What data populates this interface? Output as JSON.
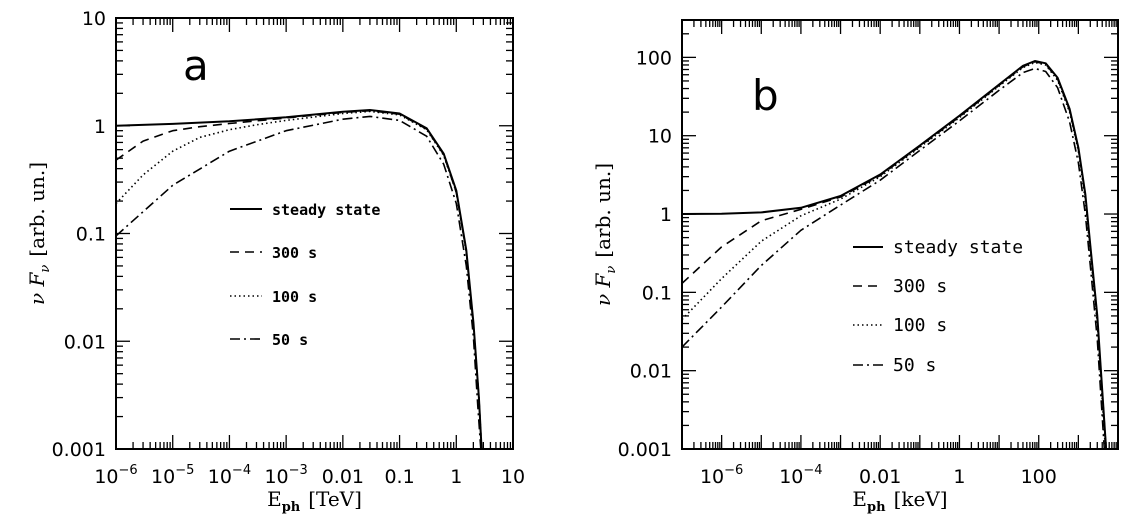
{
  "figure": {
    "panels": [
      "a",
      "b"
    ]
  },
  "chart_data": [
    {
      "type": "line",
      "panel_label": "a",
      "xlabel": "E_ph [TeV]",
      "xlabel_main": "E",
      "xlabel_sub": "ph",
      "xlabel_unit": "[TeV]",
      "ylabel": "ν F_ν [arb. un.]",
      "ylabel_nu": "ν F",
      "ylabel_sub": "ν",
      "ylabel_unit": "[arb. un.]",
      "xscale": "log",
      "yscale": "log",
      "xlim": [
        1e-06,
        10
      ],
      "ylim": [
        0.001,
        10
      ],
      "xticks": [
        {
          "value": 1e-06,
          "label": "10",
          "exp": "−6"
        },
        {
          "value": 1e-05,
          "label": "10",
          "exp": "−5"
        },
        {
          "value": 0.0001,
          "label": "10",
          "exp": "−4"
        },
        {
          "value": 0.001,
          "label": "10",
          "exp": "−3"
        },
        {
          "value": 0.01,
          "label": "0.01",
          "exp": ""
        },
        {
          "value": 0.1,
          "label": "0.1",
          "exp": ""
        },
        {
          "value": 1,
          "label": "1",
          "exp": ""
        },
        {
          "value": 10,
          "label": "10",
          "exp": ""
        }
      ],
      "yticks": [
        {
          "value": 0.001,
          "label": "0.001"
        },
        {
          "value": 0.01,
          "label": "0.01"
        },
        {
          "value": 0.1,
          "label": "0.1"
        },
        {
          "value": 1,
          "label": "1"
        },
        {
          "value": 10,
          "label": "10"
        }
      ],
      "legend": {
        "placement": "center",
        "entries": [
          "steady state",
          "300 s",
          "100 s",
          "50 s"
        ]
      },
      "series": [
        {
          "name": "steady state",
          "style": "solid",
          "x": [
            1e-06,
            1e-05,
            0.0001,
            0.001,
            0.01,
            0.03,
            0.1,
            0.3,
            0.6,
            1,
            1.5,
            2,
            2.5,
            2.8
          ],
          "y": [
            1.0,
            1.04,
            1.1,
            1.2,
            1.35,
            1.4,
            1.3,
            0.95,
            0.55,
            0.25,
            0.07,
            0.015,
            0.003,
            0.001
          ]
        },
        {
          "name": "300 s",
          "style": "dashed",
          "x": [
            1e-06,
            3e-06,
            1e-05,
            3e-05,
            0.0001,
            0.001,
            0.01,
            0.03,
            0.1,
            0.3,
            0.6,
            1,
            1.5,
            2,
            2.5,
            2.8
          ],
          "y": [
            0.48,
            0.72,
            0.9,
            0.98,
            1.05,
            1.18,
            1.33,
            1.38,
            1.28,
            0.93,
            0.54,
            0.24,
            0.068,
            0.014,
            0.003,
            0.001
          ]
        },
        {
          "name": "100 s",
          "style": "dotted",
          "x": [
            1e-06,
            3e-06,
            1e-05,
            3e-05,
            0.0001,
            0.0003,
            0.001,
            0.01,
            0.03,
            0.1,
            0.3,
            0.6,
            1,
            1.5,
            2,
            2.5,
            2.8
          ],
          "y": [
            0.19,
            0.35,
            0.58,
            0.78,
            0.92,
            1.02,
            1.12,
            1.3,
            1.36,
            1.26,
            0.92,
            0.53,
            0.24,
            0.066,
            0.014,
            0.003,
            0.001
          ]
        },
        {
          "name": "50 s",
          "style": "dashdot",
          "x": [
            1e-06,
            1e-05,
            0.0001,
            0.001,
            0.01,
            0.03,
            0.1,
            0.3,
            0.6,
            1,
            1.5,
            2,
            2.4,
            2.7
          ],
          "y": [
            0.095,
            0.28,
            0.58,
            0.9,
            1.15,
            1.22,
            1.12,
            0.8,
            0.44,
            0.19,
            0.05,
            0.011,
            0.0025,
            0.001
          ]
        }
      ]
    },
    {
      "type": "line",
      "panel_label": "b",
      "xlabel": "E_ph [keV]",
      "xlabel_main": "E",
      "xlabel_sub": "ph",
      "xlabel_unit": "[keV]",
      "ylabel": "ν F_ν [arb. un.]",
      "ylabel_nu": "ν F",
      "ylabel_sub": "ν",
      "ylabel_unit": "[arb. un.]",
      "xscale": "log",
      "yscale": "log",
      "xlim": [
        1e-07,
        10000
      ],
      "ylim": [
        0.001,
        300
      ],
      "xticks": [
        {
          "value": 1e-06,
          "label": "10",
          "exp": "−6"
        },
        {
          "value": 0.0001,
          "label": "10",
          "exp": "−4"
        },
        {
          "value": 0.01,
          "label": "0.01",
          "exp": ""
        },
        {
          "value": 1,
          "label": "1",
          "exp": ""
        },
        {
          "value": 100,
          "label": "100",
          "exp": ""
        }
      ],
      "yticks": [
        {
          "value": 0.001,
          "label": "0.001"
        },
        {
          "value": 0.01,
          "label": "0.01"
        },
        {
          "value": 0.1,
          "label": "0.1"
        },
        {
          "value": 1,
          "label": "1"
        },
        {
          "value": 10,
          "label": "10"
        },
        {
          "value": 100,
          "label": "100"
        }
      ],
      "legend": {
        "placement": "center-right",
        "entries": [
          "steady state",
          "300 s",
          "100 s",
          "50 s"
        ]
      },
      "series": [
        {
          "name": "steady state",
          "style": "solid",
          "x": [
            1e-07,
            1e-06,
            1e-05,
            0.0001,
            0.001,
            0.01,
            0.1,
            1,
            10,
            40,
            80,
            150,
            300,
            600,
            1000,
            1500,
            2000,
            3000,
            5000
          ],
          "y": [
            1.0,
            1.01,
            1.05,
            1.2,
            1.7,
            3.2,
            7.5,
            18,
            45,
            78,
            90,
            84,
            55,
            22,
            7,
            1.8,
            0.4,
            0.05,
            0.001
          ]
        },
        {
          "name": "300 s",
          "style": "dashed",
          "x": [
            1e-07,
            1e-06,
            1e-05,
            0.0001,
            0.001,
            0.01,
            0.1,
            1,
            10,
            40,
            80,
            150,
            300,
            600,
            1000,
            1500,
            2000,
            3000,
            5000
          ],
          "y": [
            0.13,
            0.38,
            0.82,
            1.15,
            1.65,
            3.1,
            7.3,
            17.5,
            44,
            76,
            88,
            82,
            53,
            21,
            6.8,
            1.7,
            0.38,
            0.045,
            0.001
          ]
        },
        {
          "name": "100 s",
          "style": "dotted",
          "x": [
            1e-07,
            1e-06,
            1e-05,
            0.0001,
            0.001,
            0.01,
            0.1,
            1,
            10,
            40,
            80,
            150,
            300,
            600,
            1000,
            1500,
            2000,
            3000,
            4800
          ],
          "y": [
            0.045,
            0.15,
            0.45,
            0.95,
            1.55,
            3.0,
            7.1,
            17,
            43,
            74,
            86,
            80,
            51,
            20,
            6.3,
            1.5,
            0.33,
            0.04,
            0.001
          ]
        },
        {
          "name": "50 s",
          "style": "dashdot",
          "x": [
            1e-07,
            1e-06,
            1e-05,
            0.0001,
            0.001,
            0.01,
            0.1,
            1,
            10,
            40,
            80,
            150,
            300,
            600,
            1000,
            1500,
            2000,
            3000,
            4500
          ],
          "y": [
            0.02,
            0.065,
            0.22,
            0.62,
            1.3,
            2.7,
            6.5,
            15.5,
            38,
            64,
            72,
            66,
            41,
            15,
            4.5,
            1.0,
            0.22,
            0.025,
            0.001
          ]
        }
      ]
    }
  ]
}
